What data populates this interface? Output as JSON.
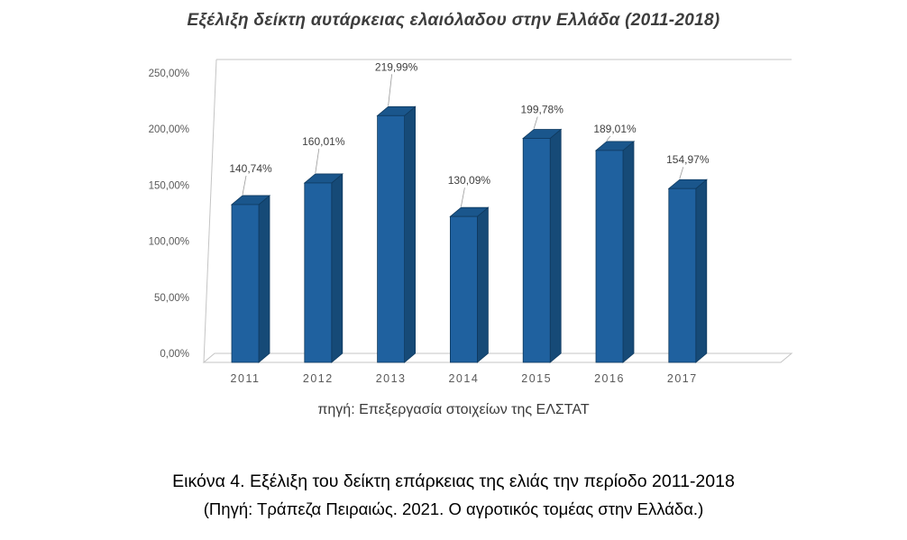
{
  "chart": {
    "title": "Εξέλιξη δείκτη αυτάρκειας ελαιόλαδου στην Ελλάδα (2011-2018)",
    "source_note": "πηγή: Επεξεργασία στοιχείων της ΕΛΣΤΑΤ"
  },
  "chart_data": {
    "type": "bar",
    "style": "3d-column",
    "title": "Εξέλιξη δείκτη αυτάρκειας ελαιόλαδου στην Ελλάδα (2011-2018)",
    "categories": [
      "2011",
      "2012",
      "2013",
      "2014",
      "2015",
      "2016",
      "2017"
    ],
    "values": [
      140.74,
      160.01,
      219.99,
      130.09,
      199.78,
      189.01,
      154.97
    ],
    "value_labels": [
      "140,74%",
      "160,01%",
      "219,99%",
      "130,09%",
      "199,78%",
      "189,01%",
      "154,97%"
    ],
    "y_ticks": [
      "0,00%",
      "50,00%",
      "100,00%",
      "150,00%",
      "200,00%",
      "250,00%"
    ],
    "y_tick_values": [
      0,
      50,
      100,
      150,
      200,
      250
    ],
    "xlabel": "",
    "ylabel": "",
    "ylim": [
      0,
      250
    ],
    "grid": false,
    "legend": false,
    "bar_color": "#1F619F",
    "bar_top_color": "#1A568C",
    "bar_side_color": "#164A77",
    "bar_outline_color": "#0F3A5F",
    "frame_color": "#c4c4c4",
    "label_color": "#3f3f3f",
    "tick_color": "#5a5a5a"
  },
  "caption": {
    "line1": "Εικόνα 4. Εξέλιξη του δείκτη επάρκειας της ελιάς την περίοδο 2011-2018",
    "line2": "(Πηγή: Τράπεζα Πειραιώς. 2021. Ο αγροτικός τομέας στην Ελλάδα.)"
  }
}
